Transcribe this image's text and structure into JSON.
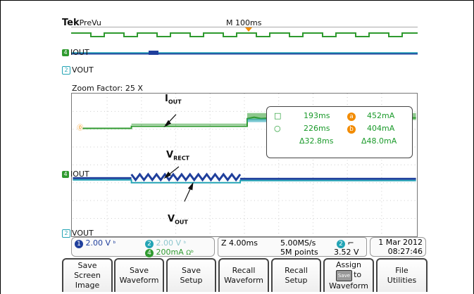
{
  "brand": "Tek",
  "mode": "PreVu",
  "timebase_top": "M 100ms",
  "overview_labels": {
    "ch4": "IOUT",
    "ch4_num": "4",
    "ch2": "VOUT",
    "ch2_num": "2"
  },
  "zoom_factor": "Zoom Factor: 25 X",
  "waveform_labels": {
    "iout": "I",
    "iout_sub": "OUT",
    "vrect": "V",
    "vrect_sub": "RECT",
    "vout": "V",
    "vout_sub": "OUT"
  },
  "grid_labels": {
    "iout": "IOUT",
    "vout": "VOUT",
    "ch4_num": "4",
    "ch2_num": "2"
  },
  "cursor_readout": {
    "a_time": "193ms",
    "a_val": "452mA",
    "a_badge": "a",
    "b_time": "226ms",
    "b_val": "404mA",
    "b_badge": "b",
    "delta_time": "Δ32.8ms",
    "delta_val": "Δ48.0mA"
  },
  "channels": {
    "ch1_num": "1",
    "ch1_scale": "2.00 V",
    "ch2_num": "2",
    "ch2_scale": "2.00 V",
    "ch4_num": "4",
    "ch4_scale": "200mA"
  },
  "timebase": {
    "zoom": "Z 4.00ms",
    "rate": "5.00MS/s",
    "points": "5M points",
    "trig_ch": "2",
    "trig_level": "3.52 V"
  },
  "datetime": {
    "date": "1 Mar 2012",
    "time": "08:27:46"
  },
  "menu": [
    {
      "line1": "Save",
      "line2": "Screen Image"
    },
    {
      "line1": "Save",
      "line2": "Waveform"
    },
    {
      "line1": "Save",
      "line2": "Setup"
    },
    {
      "line1": "Recall",
      "line2": "Waveform"
    },
    {
      "line1": "Recall",
      "line2": "Setup"
    },
    {
      "line1": "Assign",
      "badge": "Save",
      "line2_suffix": "to",
      "line3": "Waveform"
    },
    {
      "line1": "File",
      "line2": "Utilities"
    }
  ],
  "colors": {
    "ch1": "#1f3f9c",
    "ch2": "#23a4b5",
    "ch4": "#2f9a2f",
    "cursor": "#f28b00",
    "text_green": "#1a9a2a"
  }
}
